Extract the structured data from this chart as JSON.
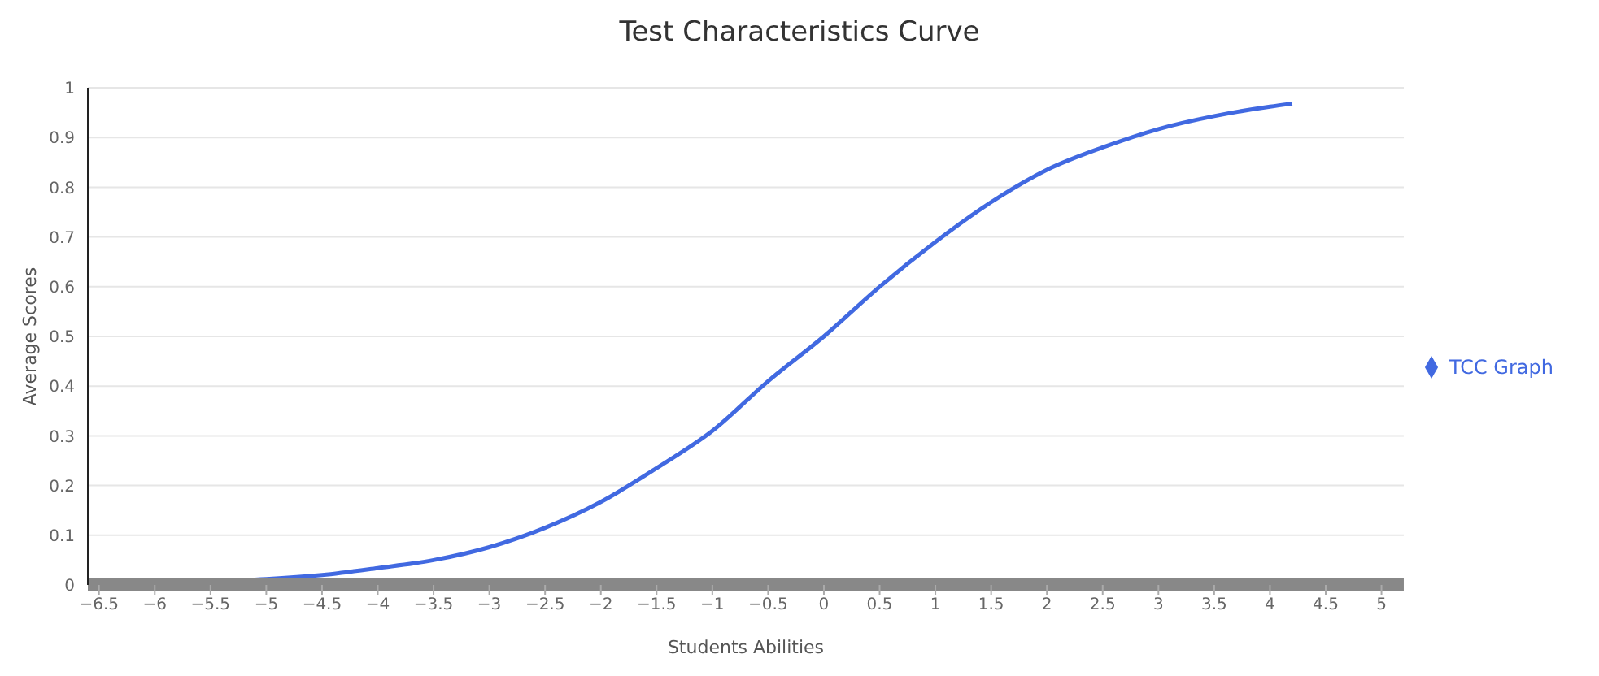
{
  "chart_data": {
    "type": "line",
    "title": "Test Characteristics Curve",
    "xlabel": "Students Abilities",
    "ylabel": "Average Scores",
    "x": [
      -5.6,
      -5,
      -4.5,
      -4,
      -3.5,
      -3,
      -2.5,
      -2,
      -1.5,
      -1,
      -0.5,
      0,
      0.5,
      1,
      1.5,
      2,
      2.5,
      3,
      3.5,
      4,
      4.2
    ],
    "series": [
      {
        "name": "TCC Graph",
        "color": "#4169e1",
        "values": [
          0.008,
          0.012,
          0.02,
          0.034,
          0.05,
          0.076,
          0.115,
          0.167,
          0.235,
          0.31,
          0.41,
          0.5,
          0.6,
          0.69,
          0.77,
          0.835,
          0.88,
          0.917,
          0.943,
          0.962,
          0.968
        ]
      }
    ],
    "xlim": [
      -6.6,
      5.2
    ],
    "xticks": [
      -6.5,
      -6,
      -5.5,
      -5,
      -4.5,
      -4,
      -3.5,
      -3,
      -2.5,
      -2,
      -1.5,
      -1,
      -0.5,
      0,
      0.5,
      1,
      1.5,
      2,
      2.5,
      3,
      3.5,
      4,
      4.5,
      5
    ],
    "ylim": [
      0,
      1
    ],
    "yticks": [
      0,
      0.1,
      0.2,
      0.3,
      0.4,
      0.5,
      0.6,
      0.7,
      0.8,
      0.9,
      1
    ],
    "grid": "y",
    "legend": "right"
  }
}
